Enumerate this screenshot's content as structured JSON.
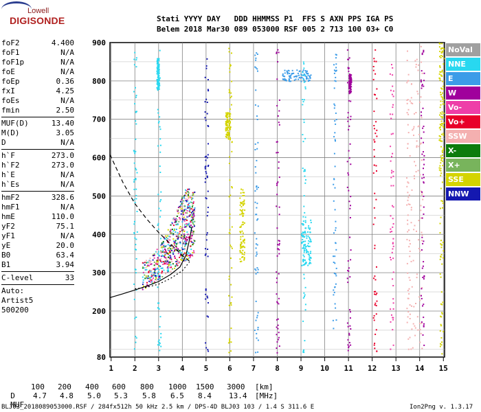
{
  "logo": {
    "top": "Lowell",
    "bottom": "DIGISONDE"
  },
  "header": {
    "line1": "Stati YYYY DAY   DDD HHMMSS P1  FFS S AXN PPS IGA PS",
    "line2": "Belem 2018 Mar30 089 053000 RSF 005 2 713 100 03+ C0"
  },
  "params": [
    {
      "k": "foF2",
      "v": "4.400"
    },
    {
      "k": "foF1",
      "v": "N/A"
    },
    {
      "k": "foF1p",
      "v": "N/A"
    },
    {
      "k": "foE",
      "v": "N/A"
    },
    {
      "k": "foEp",
      "v": "0.36"
    },
    {
      "k": "fxI",
      "v": "4.25"
    },
    {
      "k": "foEs",
      "v": "N/A"
    },
    {
      "k": "fmin",
      "v": "2.50"
    },
    {
      "sep": true
    },
    {
      "k": "MUF(D)",
      "v": "13.40"
    },
    {
      "k": "M(D)",
      "v": "3.05"
    },
    {
      "k": "D",
      "v": "N/A"
    },
    {
      "sep": true
    },
    {
      "k": "h`F",
      "v": "273.0"
    },
    {
      "k": "h`F2",
      "v": "273.0"
    },
    {
      "k": "h`E",
      "v": "N/A"
    },
    {
      "k": "h`Es",
      "v": "N/A"
    },
    {
      "sep": true
    },
    {
      "k": "hmF2",
      "v": "328.6"
    },
    {
      "k": "hmF1",
      "v": "N/A"
    },
    {
      "k": "hmE",
      "v": "110.0"
    },
    {
      "k": "yF2",
      "v": "75.1"
    },
    {
      "k": "yF1",
      "v": "N/A"
    },
    {
      "k": "yE",
      "v": "20.0"
    },
    {
      "k": "B0",
      "v": "63.4"
    },
    {
      "k": "B1",
      "v": "3.94"
    },
    {
      "sep": true
    },
    {
      "k": "C-level",
      "v": "33"
    },
    {
      "sep": true
    },
    {
      "k": "Auto:",
      "v": ""
    },
    {
      "k": "Artist5",
      "v": ""
    },
    {
      "k": "500200",
      "v": ""
    }
  ],
  "legend": [
    {
      "label": "NoVal",
      "color": "#a0a0a0"
    },
    {
      "label": "NNE",
      "color": "#28d8f0"
    },
    {
      "label": "E",
      "color": "#3c9ce8"
    },
    {
      "label": "W",
      "color": "#a0009c"
    },
    {
      "label": "Vo-",
      "color": "#ee3ea8"
    },
    {
      "label": "Vo+",
      "color": "#e8002a"
    },
    {
      "label": "SSW",
      "color": "#f4b0b0"
    },
    {
      "label": "X-",
      "color": "#0c7c0c"
    },
    {
      "label": "X+",
      "color": "#78b45c"
    },
    {
      "label": "SSE",
      "color": "#d4d400"
    },
    {
      "label": "NNW",
      "color": "#1418b0"
    }
  ],
  "chart_data": {
    "type": "scatter",
    "title": "",
    "xlabel": "",
    "ylabel": "",
    "xlim": [
      0.95,
      15.05
    ],
    "ylim": [
      80,
      900
    ],
    "xticks": [
      1,
      2,
      3,
      4,
      5,
      6,
      7,
      8,
      9,
      10,
      11,
      12,
      13,
      14,
      15
    ],
    "yticks": [
      80,
      200,
      300,
      400,
      500,
      600,
      700,
      800,
      900
    ],
    "grid": true,
    "curves": {
      "virtual_height_solid": {
        "x": [
          0.95,
          1.5,
          2.0,
          2.5,
          3.0,
          3.5,
          3.9,
          4.15,
          4.3,
          4.4
        ],
        "y": [
          235,
          245,
          255,
          265,
          277,
          295,
          315,
          345,
          385,
          420
        ]
      },
      "virtual_height_dashed": {
        "x": [
          0.95,
          1.5,
          2.0,
          2.5,
          3.0,
          3.5,
          4.0,
          4.3
        ],
        "y": [
          608,
          535,
          480,
          440,
          405,
          375,
          345,
          330
        ]
      },
      "virtual_height_dotted": {
        "x": [
          2.0,
          2.5,
          3.0,
          3.5,
          4.0,
          4.3
        ],
        "y": [
          258,
          262,
          270,
          285,
          305,
          328
        ]
      }
    },
    "echo_clusters": [
      {
        "name": "F-trace",
        "x": [
          2.3,
          4.5
        ],
        "y": [
          255,
          520
        ],
        "dense": true
      },
      {
        "name": "NNE",
        "x": [
          2.9,
          3.0
        ],
        "y": [
          780,
          860
        ]
      },
      {
        "name": "SSE",
        "x": [
          5.8,
          6.0
        ],
        "y": [
          650,
          720
        ]
      },
      {
        "name": "SSE",
        "x": [
          6.4,
          6.6
        ],
        "y": [
          330,
          520
        ]
      },
      {
        "name": "E",
        "x": [
          8.2,
          9.4
        ],
        "y": [
          800,
          830
        ]
      },
      {
        "name": "NNE",
        "x": [
          9.0,
          9.4
        ],
        "y": [
          320,
          440
        ]
      },
      {
        "name": "W",
        "x": [
          11.0,
          11.1
        ],
        "y": [
          770,
          820
        ]
      },
      {
        "name": "SSW",
        "x": [
          13.6,
          14.1
        ],
        "y": [
          100,
          900
        ]
      },
      {
        "name": "SSE",
        "x": [
          14.8,
          15.0
        ],
        "y": [
          560,
          900
        ]
      }
    ]
  },
  "footer": {
    "d_label": "D",
    "d_vals": [
      "100",
      "200",
      "400",
      "600",
      "800",
      "1000",
      "1500",
      "3000"
    ],
    "d_unit": "[km]",
    "muf_label": "MUF",
    "muf_vals": [
      "4.7",
      "4.8",
      "5.0",
      "5.3",
      "5.8",
      "6.5",
      "8.4",
      "13.4"
    ],
    "muf_unit": "[MHz]",
    "note": "BLJ03_2018089053000.RSF / 284fx512h 50 kHz 2.5 km / DPS-4D BLJ03 103 / 1.4 S 311.6 E",
    "version": "Ion2Png v. 1.3.17"
  }
}
